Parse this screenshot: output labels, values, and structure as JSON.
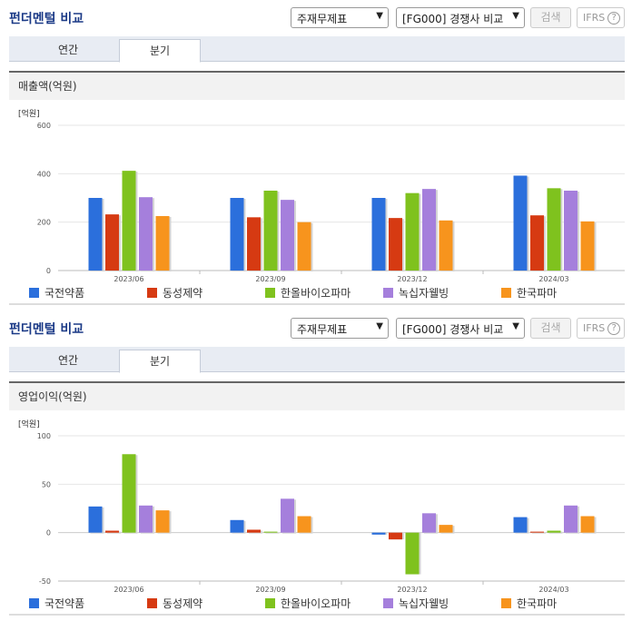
{
  "panel_title": "펀더멘털 비교",
  "controls": {
    "statement_select": "주재무제표",
    "peer_select": "[FG000] 경쟁사 비교",
    "search_button": "검색",
    "ifrs_label": "IFRS",
    "help_glyph": "?"
  },
  "tabs": [
    "연간",
    "분기"
  ],
  "active_tab": "분기",
  "unit_label": "[억원]",
  "colors": {
    "series": [
      "#2b6fdc",
      "#d63a12",
      "#7fc21e",
      "#a57fdc",
      "#f7941d"
    ],
    "title": "#1b3a87"
  },
  "chart_data": [
    {
      "type": "bar",
      "title": "매출액(억원)",
      "categories": [
        "2023/06",
        "2023/09",
        "2023/12",
        "2024/03"
      ],
      "ylim": [
        0,
        600
      ],
      "yticks": [
        0,
        200,
        400,
        600
      ],
      "grid": true,
      "legend_position": "bottom",
      "series": [
        {
          "name": "국전약품",
          "values": [
            300,
            300,
            300,
            392
          ]
        },
        {
          "name": "동성제약",
          "values": [
            232,
            220,
            217,
            228
          ]
        },
        {
          "name": "한올바이오파마",
          "values": [
            412,
            330,
            320,
            340
          ]
        },
        {
          "name": "녹십자웰빙",
          "values": [
            303,
            292,
            337,
            330
          ]
        },
        {
          "name": "한국파마",
          "values": [
            225,
            200,
            207,
            203
          ]
        }
      ]
    },
    {
      "type": "bar",
      "title": "영업이익(억원)",
      "categories": [
        "2023/06",
        "2023/09",
        "2023/12",
        "2024/03"
      ],
      "ylim": [
        -50,
        100
      ],
      "yticks": [
        -50,
        0,
        50,
        100
      ],
      "grid": true,
      "legend_position": "bottom",
      "series": [
        {
          "name": "국전약품",
          "values": [
            27,
            13,
            -2,
            16
          ]
        },
        {
          "name": "동성제약",
          "values": [
            2,
            3,
            -7,
            1
          ]
        },
        {
          "name": "한올바이오파마",
          "values": [
            81,
            1,
            -43,
            2
          ]
        },
        {
          "name": "녹십자웰빙",
          "values": [
            28,
            35,
            20,
            28
          ]
        },
        {
          "name": "한국파마",
          "values": [
            23,
            17,
            8,
            17
          ]
        }
      ]
    }
  ]
}
